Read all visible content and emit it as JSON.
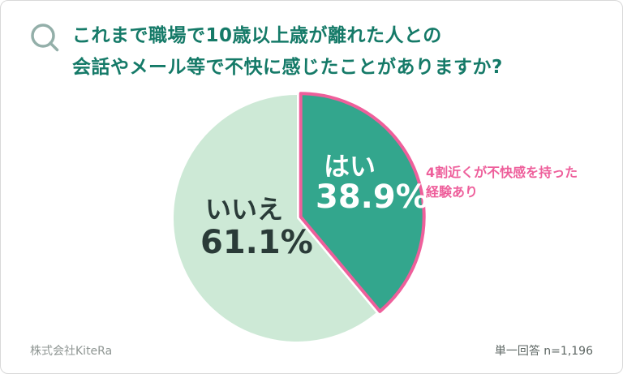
{
  "header": {
    "q_mark": "Q",
    "title_line1": "これまで職場で10歳以上歳が離れた人との",
    "title_line2": "会話やメール等で不快に感じたことがありますか?"
  },
  "annotation": {
    "line1": "4割近くが不快感を持った",
    "line2": "経験あり"
  },
  "footer": {
    "company": "株式会社KiteRa",
    "note": "単一回答 n=1,196"
  },
  "colors": {
    "title_teal": "#157a68",
    "yes_slice": "#33a68d",
    "no_slice": "#cde9d6",
    "accent_pink": "#ee5f9b",
    "q_icon": "#93afa9"
  },
  "chart_data": {
    "type": "pie",
    "title": "これまで職場で10歳以上歳が離れた人との会話やメール等で不快に感じたことがありますか?",
    "start_angle_deg": -90,
    "direction": "clockwise",
    "legend": "none",
    "slices": [
      {
        "label": "はい",
        "value": 38.9,
        "value_label": "38.9%",
        "color": "#33a68d",
        "text_color": "#ffffff",
        "stroke": "#ee5f9b",
        "stroke_width": 4,
        "explode": 5
      },
      {
        "label": "いいえ",
        "value": 61.1,
        "value_label": "61.1%",
        "color": "#cde9d6",
        "text_color": "#2a3b38"
      }
    ],
    "annotation": "4割近くが不快感を持った経験あり",
    "note": "単一回答 n=1,196"
  }
}
